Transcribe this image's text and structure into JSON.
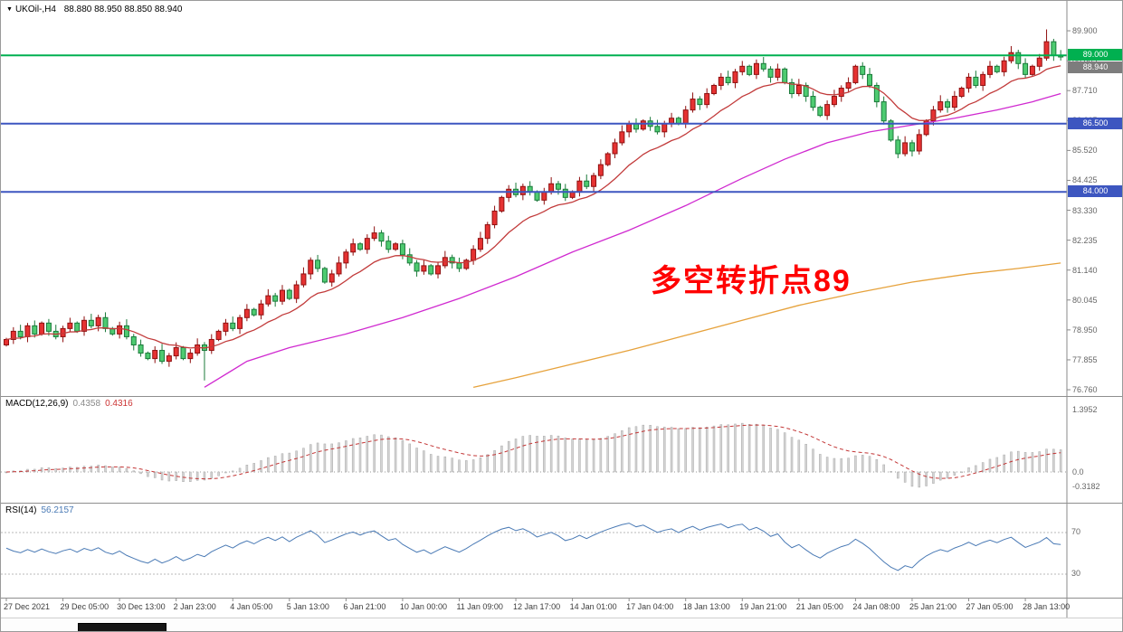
{
  "header": {
    "symbol": "UKOil-,H4",
    "quotes": "88.880 88.950 88.850 88.940"
  },
  "chart_data": {
    "type": "candlestick",
    "symbol": "UKOil-",
    "timeframe": "H4",
    "ohlc_current": {
      "open": "88.880",
      "high": "88.950",
      "low": "88.850",
      "close": "88.940"
    },
    "first_open": 78.4,
    "closes": [
      78.6,
      78.9,
      78.7,
      79.1,
      78.8,
      79.2,
      78.9,
      78.7,
      79.0,
      79.2,
      78.9,
      79.3,
      79.1,
      79.4,
      79.0,
      78.8,
      79.1,
      78.7,
      78.4,
      78.1,
      77.9,
      78.2,
      77.8,
      78.0,
      78.3,
      77.9,
      78.1,
      78.4,
      78.2,
      78.6,
      78.9,
      79.2,
      79.0,
      79.4,
      79.7,
      79.5,
      79.9,
      80.2,
      80.0,
      80.4,
      80.1,
      80.6,
      81.0,
      81.5,
      81.2,
      80.7,
      81.0,
      81.4,
      81.8,
      82.1,
      81.9,
      82.3,
      82.5,
      82.2,
      81.9,
      82.1,
      81.7,
      81.4,
      81.1,
      81.3,
      81.0,
      81.3,
      81.6,
      81.4,
      81.2,
      81.5,
      81.9,
      82.3,
      82.8,
      83.3,
      83.8,
      84.1,
      83.9,
      84.2,
      84.0,
      83.7,
      84.0,
      84.3,
      84.1,
      83.8,
      84.0,
      84.4,
      84.2,
      84.6,
      85.0,
      85.4,
      85.8,
      86.2,
      86.5,
      86.3,
      86.6,
      86.4,
      86.2,
      86.5,
      86.7,
      86.5,
      87.0,
      87.4,
      87.2,
      87.6,
      87.9,
      88.2,
      88.0,
      88.4,
      88.6,
      88.3,
      88.7,
      88.5,
      88.2,
      88.5,
      88.0,
      87.6,
      87.9,
      87.5,
      87.1,
      86.8,
      87.2,
      87.5,
      87.8,
      88.0,
      88.6,
      88.3,
      87.9,
      87.3,
      86.6,
      85.9,
      85.4,
      85.8,
      85.5,
      86.1,
      86.6,
      87.0,
      87.3,
      87.1,
      87.5,
      87.8,
      88.2,
      87.9,
      88.3,
      88.6,
      88.4,
      88.8,
      89.1,
      88.7,
      88.3,
      88.6,
      88.9,
      89.5,
      89.0,
      88.94
    ],
    "wick_extremes": [
      {
        "bar": 28,
        "low": 77.1
      },
      {
        "bar": 147,
        "high": 89.95
      }
    ],
    "price_axis": {
      "max": 90.53,
      "min": 76.53,
      "top_tick": 89.9,
      "step": 1.095,
      "count": 13
    },
    "time_labels": [
      "27 Dec 2021",
      "29 Dec 05:00",
      "30 Dec 13:00",
      "2 Jan 23:00",
      "4 Jan 05:00",
      "5 Jan 13:00",
      "6 Jan 21:00",
      "10 Jan 00:00",
      "11 Jan 09:00",
      "12 Jan 17:00",
      "14 Jan 01:00",
      "17 Jan 04:00",
      "18 Jan 13:00",
      "19 Jan 21:00",
      "21 Jan 05:00",
      "24 Jan 08:00",
      "25 Jan 21:00",
      "27 Jan 05:00",
      "28 Jan 13:00"
    ],
    "bars_per_label": 8,
    "hlines": [
      {
        "price": 89.0,
        "label": "89.000",
        "color": "#00b050"
      },
      {
        "price": 86.5,
        "label": "86.500",
        "color": "#3d56c0"
      },
      {
        "price": 84.0,
        "label": "84.000",
        "color": "#3d56c0"
      }
    ],
    "last_price_label": "88.940",
    "annotation": {
      "text": "多空转折点89",
      "color": "#ff0000"
    },
    "moving_averages": {
      "fast_ema_period": 13,
      "fast_color": "#c23b3b",
      "mid_color": "#d02ad0",
      "mid_points": [
        [
          28,
          76.85
        ],
        [
          34,
          77.8
        ],
        [
          40,
          78.3
        ],
        [
          48,
          78.8
        ],
        [
          56,
          79.4
        ],
        [
          64,
          80.1
        ],
        [
          72,
          80.9
        ],
        [
          80,
          81.8
        ],
        [
          88,
          82.6
        ],
        [
          96,
          83.5
        ],
        [
          104,
          84.5
        ],
        [
          110,
          85.2
        ],
        [
          116,
          85.8
        ],
        [
          122,
          86.2
        ],
        [
          128,
          86.45
        ],
        [
          134,
          86.7
        ],
        [
          140,
          87.0
        ],
        [
          145,
          87.3
        ],
        [
          149,
          87.6
        ]
      ],
      "slow_color": "#e6a23c",
      "slow_points": [
        [
          66,
          76.85
        ],
        [
          72,
          77.2
        ],
        [
          80,
          77.7
        ],
        [
          88,
          78.2
        ],
        [
          96,
          78.75
        ],
        [
          104,
          79.3
        ],
        [
          112,
          79.85
        ],
        [
          120,
          80.3
        ],
        [
          128,
          80.7
        ],
        [
          136,
          81.0
        ],
        [
          143,
          81.2
        ],
        [
          149,
          81.4
        ]
      ]
    },
    "indicators": {
      "macd": {
        "title": "MACD(12,26,9)",
        "value_main": "0.4358",
        "value_signal": "0.4316",
        "fast": 12,
        "slow": 26,
        "signal_period": 9,
        "scale": {
          "max_label": "1.3952",
          "zero_label": "0.0",
          "min_label": "-0.3182"
        },
        "histogram_fill": "#d4d4d4",
        "histogram_stroke": "#a9a9a9",
        "signal_color": "#c33636"
      },
      "rsi": {
        "title": "RSI(14)",
        "value": "56.2157",
        "period": 14,
        "levels": [
          70,
          30
        ],
        "line_color": "#4a7ab5"
      }
    },
    "colors": {
      "up": "#e63232",
      "up_stroke": "#8f1010",
      "down": "#4ecb71",
      "down_stroke": "#1a7a3a"
    }
  }
}
